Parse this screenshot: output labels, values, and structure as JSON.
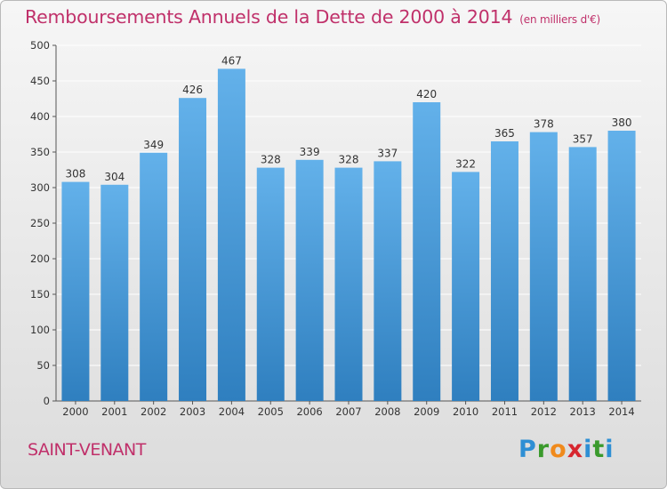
{
  "title": "Remboursements Annuels de la Dette de 2000 à 2014",
  "title_unit": "(en milliers d'€)",
  "commune": "SAINT-VENANT",
  "logo": {
    "letters": [
      "P",
      "r",
      "o",
      "x",
      "i",
      "t",
      "i"
    ],
    "colors": [
      "#2e8fd4",
      "#3a9a2c",
      "#f08a1c",
      "#d7262f",
      "#2e8fd4",
      "#3a9a2c",
      "#2e8fd4"
    ]
  },
  "colors": {
    "title": "#c0306a",
    "bar_light": "#63b1ea",
    "bar_dark": "#2f7fbf",
    "grid": "#ffffff"
  },
  "chart_data": {
    "type": "bar",
    "categories": [
      "2000",
      "2001",
      "2002",
      "2003",
      "2004",
      "2005",
      "2006",
      "2007",
      "2008",
      "2009",
      "2010",
      "2011",
      "2012",
      "2013",
      "2014"
    ],
    "values": [
      308,
      304,
      349,
      426,
      467,
      328,
      339,
      328,
      337,
      420,
      322,
      365,
      378,
      357,
      380
    ],
    "yticks": [
      0,
      50,
      100,
      150,
      200,
      250,
      300,
      350,
      400,
      450,
      500
    ],
    "ylim": [
      0,
      500
    ],
    "grid": true,
    "xlabel": "",
    "ylabel": ""
  }
}
